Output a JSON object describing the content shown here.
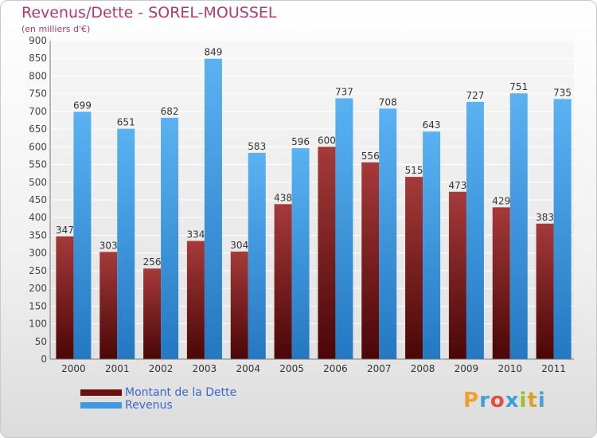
{
  "header": {
    "title": "Revenus/Dette - SOREL-MOUSSEL",
    "subtitle": "(en milliers d'€)"
  },
  "chart_data": {
    "type": "bar",
    "categories": [
      "2000",
      "2001",
      "2002",
      "2003",
      "2004",
      "2005",
      "2006",
      "2007",
      "2008",
      "2009",
      "2010",
      "2011"
    ],
    "series": [
      {
        "name": "Montant de la Dette",
        "color": "#7a1f1f",
        "values": [
          347,
          303,
          256,
          334,
          304,
          438,
          600,
          556,
          515,
          473,
          429,
          383
        ]
      },
      {
        "name": "Revenus",
        "color": "#3d9be6",
        "values": [
          699,
          651,
          682,
          849,
          583,
          596,
          737,
          708,
          643,
          727,
          751,
          735
        ]
      }
    ],
    "ylim": [
      0,
      900
    ],
    "ytick_step": 50,
    "grid": true,
    "legend_position": "bottom-left"
  },
  "legend": {
    "items": [
      {
        "label": "Montant de la Dette",
        "color": "#7a1f1f"
      },
      {
        "label": "Revenus",
        "color": "#3d9be6"
      }
    ]
  },
  "logo": {
    "text": "Proxiti"
  }
}
